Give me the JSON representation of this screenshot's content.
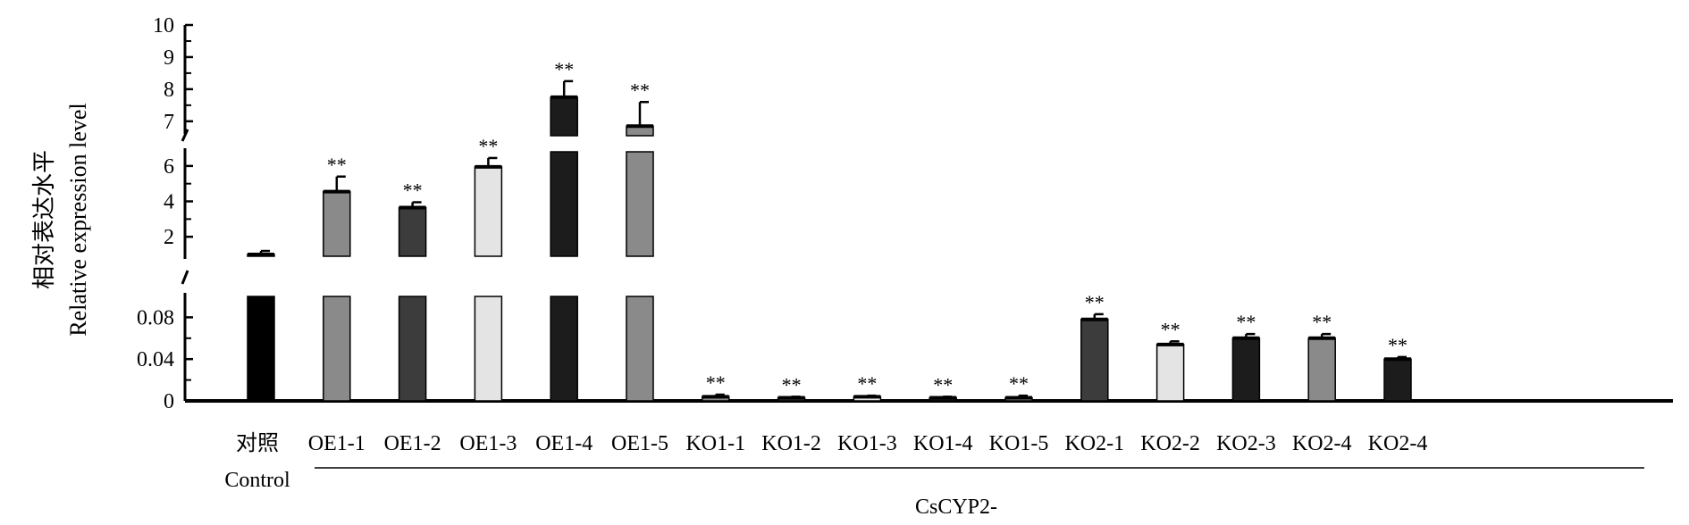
{
  "chart_data": {
    "type": "bar",
    "ylabel_cn": "相对表达水平",
    "ylabel_en": "Relative expression level",
    "group_label": "CsCYP2-",
    "control_sub_label": "Control",
    "significance_mark": "**",
    "broken_axis": true,
    "y_segments": [
      {
        "ticks": [
          "0",
          "0.04",
          "0.08"
        ],
        "range": [
          0,
          0.1
        ]
      },
      {
        "ticks": [
          "2",
          "4",
          "6"
        ],
        "range": [
          0.9,
          6.8
        ]
      },
      {
        "ticks": [
          "7",
          "8",
          "9",
          "10"
        ],
        "range": [
          6.55,
          10
        ]
      }
    ],
    "bars": [
      {
        "label": "对照",
        "value": 1.0,
        "error": 0.2,
        "color": "#000000",
        "sig": false
      },
      {
        "label": "OE1-1",
        "value": 4.55,
        "error": 0.85,
        "color": "#8a8a8a",
        "sig": true
      },
      {
        "label": "OE1-2",
        "value": 3.65,
        "error": 0.3,
        "color": "#3c3c3c",
        "sig": true
      },
      {
        "label": "OE1-3",
        "value": 5.95,
        "error": 0.5,
        "color": "#e4e4e4",
        "sig": true
      },
      {
        "label": "OE1-4",
        "value": 7.75,
        "error": 0.5,
        "color": "#1c1c1c",
        "sig": true
      },
      {
        "label": "OE1-5",
        "value": 6.85,
        "error": 0.75,
        "color": "#8a8a8a",
        "sig": true
      },
      {
        "label": "KO1-1",
        "value": 0.004,
        "error": 0.002,
        "color": "#8a8a8a",
        "sig": true
      },
      {
        "label": "KO1-2",
        "value": 0.003,
        "error": 0.001,
        "color": "#3c3c3c",
        "sig": true
      },
      {
        "label": "KO1-3",
        "value": 0.004,
        "error": 0.001,
        "color": "#e4e4e4",
        "sig": true
      },
      {
        "label": "KO1-4",
        "value": 0.003,
        "error": 0.001,
        "color": "#1c1c1c",
        "sig": true
      },
      {
        "label": "KO1-5",
        "value": 0.003,
        "error": 0.002,
        "color": "#8a8a8a",
        "sig": true
      },
      {
        "label": "KO2-1",
        "value": 0.078,
        "error": 0.005,
        "color": "#3c3c3c",
        "sig": true
      },
      {
        "label": "KO2-2",
        "value": 0.054,
        "error": 0.003,
        "color": "#e4e4e4",
        "sig": true
      },
      {
        "label": "KO2-3",
        "value": 0.06,
        "error": 0.004,
        "color": "#1c1c1c",
        "sig": true
      },
      {
        "label": "KO2-4",
        "value": 0.06,
        "error": 0.004,
        "color": "#8a8a8a",
        "sig": true
      },
      {
        "label": "KO2-4",
        "value": 0.04,
        "error": 0.002,
        "color": "#1c1c1c",
        "sig": true
      }
    ]
  }
}
